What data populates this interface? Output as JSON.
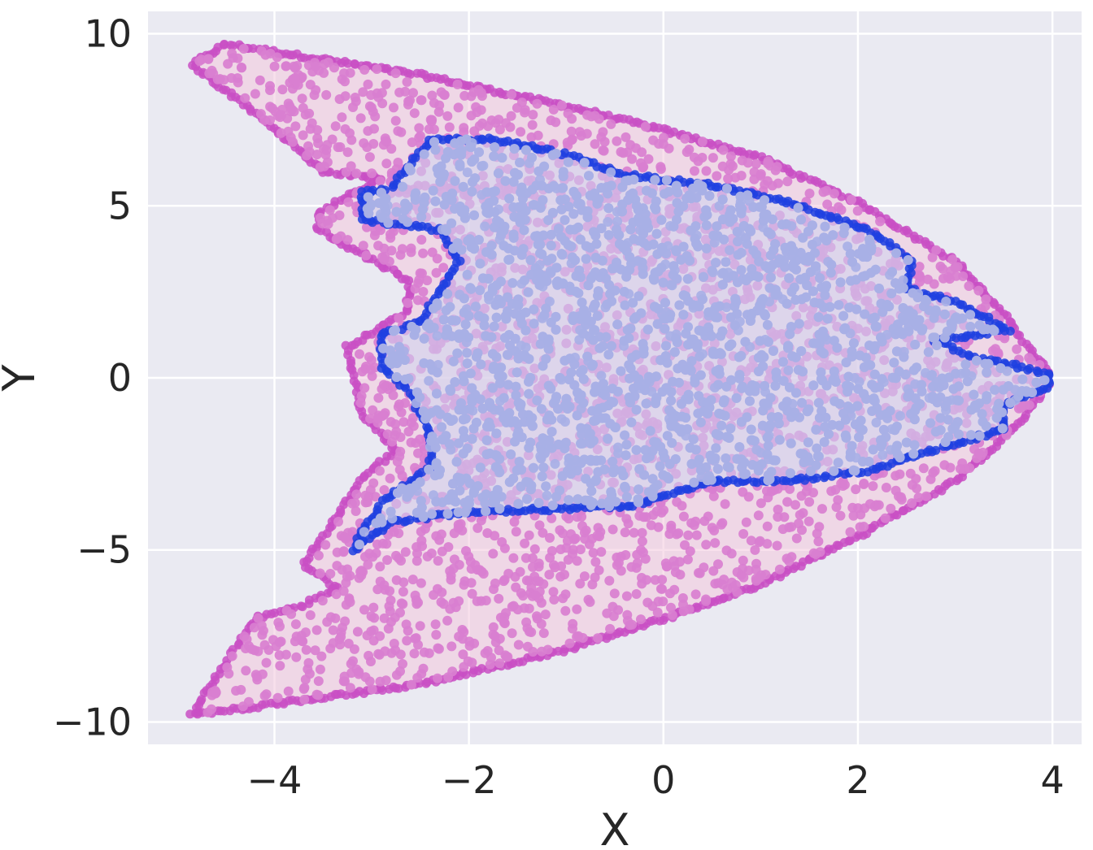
{
  "chart_data": {
    "type": "scatter",
    "title": "",
    "xlabel": "X",
    "ylabel": "Y",
    "xlim": [
      -5.3,
      4.3
    ],
    "ylim": [
      -10.65,
      10.65
    ],
    "x_ticks": [
      -4,
      -2,
      0,
      2,
      4
    ],
    "y_ticks": [
      -10,
      -5,
      0,
      5,
      10
    ],
    "x_tick_labels": [
      "−4",
      "−2",
      "0",
      "2",
      "4"
    ],
    "y_tick_labels": [
      "−10",
      "−5",
      "0",
      "5",
      "10"
    ],
    "grid": true,
    "background_color": "#eaeaf2",
    "grid_color": "#ffffff",
    "series": [
      {
        "point_color": "#d97fd0",
        "edge_color": "#c94fc4",
        "hull_fill": "#f2c6dc",
        "point_count": 2600,
        "hull": [
          [
            -4.85,
            9.1
          ],
          [
            -4.5,
            9.7
          ],
          [
            -3.6,
            9.3
          ],
          [
            -2.5,
            8.8
          ],
          [
            -1.0,
            7.9
          ],
          [
            0.0,
            7.2
          ],
          [
            1.0,
            6.4
          ],
          [
            2.0,
            5.1
          ],
          [
            3.0,
            3.4
          ],
          [
            3.6,
            1.5
          ],
          [
            3.8,
            0.7
          ],
          [
            3.95,
            0.2
          ],
          [
            3.95,
            -0.2
          ],
          [
            3.6,
            -1.5
          ],
          [
            3.0,
            -3.0
          ],
          [
            2.0,
            -4.6
          ],
          [
            1.0,
            -6.0
          ],
          [
            0.0,
            -7.0
          ],
          [
            -1.0,
            -7.9
          ],
          [
            -2.5,
            -8.9
          ],
          [
            -3.8,
            -9.4
          ],
          [
            -4.85,
            -9.8
          ],
          [
            -4.2,
            -7.0
          ],
          [
            -3.7,
            -6.6
          ],
          [
            -3.35,
            -6.1
          ],
          [
            -3.7,
            -5.4
          ],
          [
            -3.4,
            -4.2
          ],
          [
            -3.1,
            -2.9
          ],
          [
            -2.75,
            -2.1
          ],
          [
            -3.1,
            -1.0
          ],
          [
            -3.25,
            0.9
          ],
          [
            -2.65,
            1.9
          ],
          [
            -2.6,
            2.8
          ],
          [
            -2.9,
            3.3
          ],
          [
            -3.55,
            4.3
          ],
          [
            -3.55,
            4.8
          ],
          [
            -2.9,
            5.8
          ],
          [
            -3.5,
            6.0
          ],
          [
            -4.2,
            7.7
          ],
          [
            -4.85,
            9.1
          ]
        ],
        "x_range": [
          -4.85,
          3.95
        ]
      },
      {
        "point_color": "#a8b0e6",
        "edge_color": "#1f3fe0",
        "hull_fill": "#cdd3ef",
        "point_count": 3300,
        "hull": [
          [
            -2.4,
            6.9
          ],
          [
            -1.8,
            6.95
          ],
          [
            -1.0,
            6.5
          ],
          [
            -0.4,
            5.9
          ],
          [
            0.5,
            5.6
          ],
          [
            1.3,
            5.1
          ],
          [
            2.1,
            4.3
          ],
          [
            2.55,
            3.4
          ],
          [
            2.5,
            2.6
          ],
          [
            3.0,
            2.2
          ],
          [
            3.55,
            1.4
          ],
          [
            2.8,
            1.1
          ],
          [
            3.2,
            0.6
          ],
          [
            3.95,
            0.15
          ],
          [
            3.95,
            -0.3
          ],
          [
            3.5,
            -0.8
          ],
          [
            3.5,
            -1.5
          ],
          [
            2.9,
            -2.0
          ],
          [
            2.1,
            -2.7
          ],
          [
            1.3,
            -3.0
          ],
          [
            0.5,
            -3.0
          ],
          [
            -0.3,
            -3.7
          ],
          [
            -1.0,
            -3.8
          ],
          [
            -2.0,
            -3.9
          ],
          [
            -2.8,
            -4.2
          ],
          [
            -3.2,
            -5.0
          ],
          [
            -2.9,
            -3.6
          ],
          [
            -2.4,
            -2.6
          ],
          [
            -2.4,
            -1.7
          ],
          [
            -2.6,
            -0.4
          ],
          [
            -2.9,
            0.3
          ],
          [
            -2.9,
            1.3
          ],
          [
            -2.5,
            1.6
          ],
          [
            -2.4,
            2.1
          ],
          [
            -2.1,
            3.4
          ],
          [
            -2.3,
            4.3
          ],
          [
            -3.1,
            4.6
          ],
          [
            -3.1,
            5.4
          ],
          [
            -2.8,
            5.5
          ],
          [
            -2.4,
            6.9
          ]
        ],
        "x_range": [
          -3.2,
          3.95
        ]
      }
    ]
  }
}
